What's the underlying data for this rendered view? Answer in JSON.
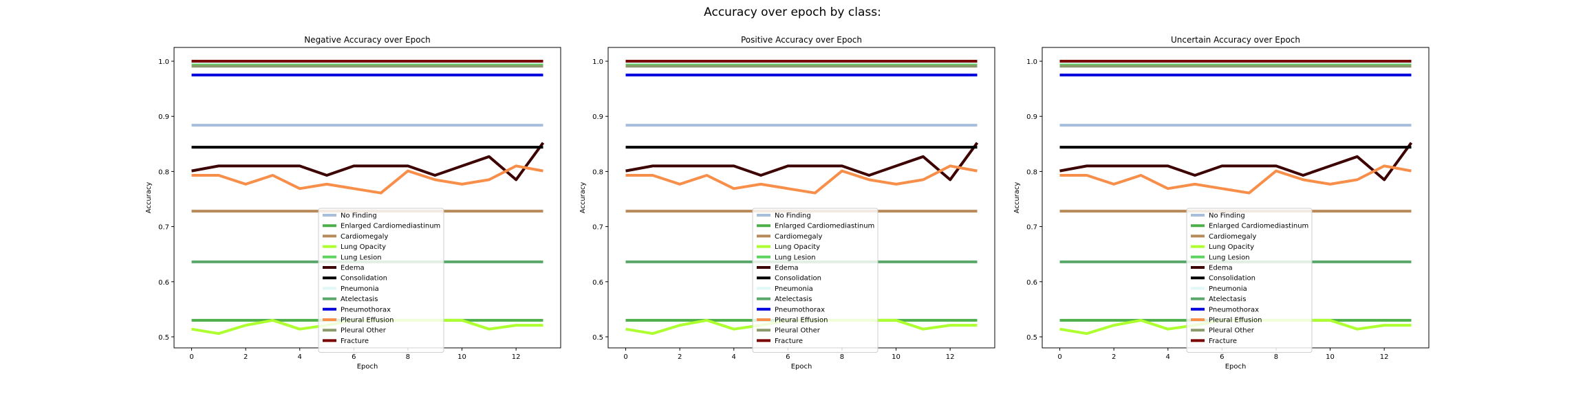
{
  "figure": {
    "title": "Accuracy over epoch by class:"
  },
  "chart_data": [
    {
      "type": "line",
      "title": "Negative Accuracy over Epoch",
      "xlabel": "Epoch",
      "ylabel": "Accuracy",
      "xlim": [
        -0.65,
        13.65
      ],
      "ylim": [
        0.48,
        1.025
      ],
      "xticks": [
        0,
        2,
        4,
        6,
        8,
        10,
        12
      ],
      "yticks": [
        0.5,
        0.6,
        0.7,
        0.8,
        0.9,
        1.0
      ],
      "grid": false,
      "legend": "lower-center",
      "x": [
        0,
        1,
        2,
        3,
        4,
        5,
        6,
        7,
        8,
        9,
        10,
        11,
        12,
        13
      ],
      "series": [
        {
          "name": "No Finding",
          "color": "#a6bddb",
          "values": [
            0.884,
            0.884,
            0.884,
            0.884,
            0.884,
            0.884,
            0.884,
            0.884,
            0.884,
            0.884,
            0.884,
            0.884,
            0.884,
            0.884
          ]
        },
        {
          "name": "Enlarged Cardiomediastinum",
          "color": "#4daf4a",
          "values": [
            0.53,
            0.53,
            0.53,
            0.53,
            0.53,
            0.53,
            0.53,
            0.53,
            0.53,
            0.53,
            0.53,
            0.53,
            0.53,
            0.53
          ]
        },
        {
          "name": "Cardiomegaly",
          "color": "#b88a5a",
          "values": [
            0.728,
            0.728,
            0.728,
            0.728,
            0.728,
            0.728,
            0.728,
            0.728,
            0.728,
            0.728,
            0.728,
            0.728,
            0.728,
            0.728
          ]
        },
        {
          "name": "Lung Opacity",
          "color": "#adff2f",
          "values": [
            0.514,
            0.506,
            0.521,
            0.53,
            0.514,
            0.521,
            0.53,
            0.53,
            0.53,
            0.53,
            0.53,
            0.514,
            0.521,
            0.521
          ]
        },
        {
          "name": "Lung Lesion",
          "color": "#5fd35f",
          "values": [
            0.994,
            0.994,
            0.994,
            0.994,
            0.994,
            0.994,
            0.994,
            0.994,
            0.994,
            0.994,
            0.994,
            0.994,
            0.994,
            0.994
          ]
        },
        {
          "name": "Edema",
          "color": "#3d0000",
          "values": [
            0.801,
            0.81,
            0.81,
            0.81,
            0.81,
            0.793,
            0.81,
            0.81,
            0.81,
            0.793,
            0.81,
            0.827,
            0.785,
            0.852
          ]
        },
        {
          "name": "Consolidation",
          "color": "#000000",
          "values": [
            0.844,
            0.844,
            0.844,
            0.844,
            0.844,
            0.844,
            0.844,
            0.844,
            0.844,
            0.844,
            0.844,
            0.844,
            0.844,
            0.844
          ]
        },
        {
          "name": "Pneumonia",
          "color": "#e0f8f8",
          "values": [
            0.998,
            0.998,
            0.998,
            0.998,
            0.998,
            0.998,
            0.998,
            0.998,
            0.998,
            0.998,
            0.998,
            0.998,
            0.998,
            0.998
          ]
        },
        {
          "name": "Atelectasis",
          "color": "#5aa869",
          "values": [
            0.636,
            0.636,
            0.636,
            0.636,
            0.636,
            0.636,
            0.636,
            0.636,
            0.636,
            0.636,
            0.636,
            0.636,
            0.636,
            0.636
          ]
        },
        {
          "name": "Pneumothorax",
          "color": "#0000dd",
          "values": [
            0.975,
            0.975,
            0.975,
            0.975,
            0.975,
            0.975,
            0.975,
            0.975,
            0.975,
            0.975,
            0.975,
            0.975,
            0.975,
            0.975
          ]
        },
        {
          "name": "Pleural Effusion",
          "color": "#f78f4a",
          "values": [
            0.793,
            0.793,
            0.777,
            0.793,
            0.769,
            0.777,
            0.769,
            0.761,
            0.801,
            0.785,
            0.777,
            0.785,
            0.81,
            0.801
          ]
        },
        {
          "name": "Pleural Other",
          "color": "#8b9a6b",
          "values": [
            0.991,
            0.991,
            0.991,
            0.991,
            0.991,
            0.991,
            0.991,
            0.991,
            0.991,
            0.991,
            0.991,
            0.991,
            0.991,
            0.991
          ]
        },
        {
          "name": "Fracture",
          "color": "#7a0000",
          "values": [
            1.0,
            1.0,
            1.0,
            1.0,
            1.0,
            1.0,
            1.0,
            1.0,
            1.0,
            1.0,
            1.0,
            1.0,
            1.0,
            1.0
          ]
        }
      ]
    },
    {
      "type": "line",
      "title": "Positive Accuracy over Epoch",
      "xlabel": "Epoch",
      "ylabel": "Accuracy",
      "xlim": [
        -0.65,
        13.65
      ],
      "ylim": [
        0.48,
        1.025
      ],
      "xticks": [
        0,
        2,
        4,
        6,
        8,
        10,
        12
      ],
      "yticks": [
        0.5,
        0.6,
        0.7,
        0.8,
        0.9,
        1.0
      ],
      "grid": false,
      "legend": "lower-center",
      "x": [
        0,
        1,
        2,
        3,
        4,
        5,
        6,
        7,
        8,
        9,
        10,
        11,
        12,
        13
      ],
      "series": [
        {
          "name": "No Finding",
          "color": "#a6bddb",
          "values": [
            0.884,
            0.884,
            0.884,
            0.884,
            0.884,
            0.884,
            0.884,
            0.884,
            0.884,
            0.884,
            0.884,
            0.884,
            0.884,
            0.884
          ]
        },
        {
          "name": "Enlarged Cardiomediastinum",
          "color": "#4daf4a",
          "values": [
            0.53,
            0.53,
            0.53,
            0.53,
            0.53,
            0.53,
            0.53,
            0.53,
            0.53,
            0.53,
            0.53,
            0.53,
            0.53,
            0.53
          ]
        },
        {
          "name": "Cardiomegaly",
          "color": "#b88a5a",
          "values": [
            0.728,
            0.728,
            0.728,
            0.728,
            0.728,
            0.728,
            0.728,
            0.728,
            0.728,
            0.728,
            0.728,
            0.728,
            0.728,
            0.728
          ]
        },
        {
          "name": "Lung Opacity",
          "color": "#adff2f",
          "values": [
            0.514,
            0.506,
            0.521,
            0.53,
            0.514,
            0.521,
            0.53,
            0.53,
            0.53,
            0.53,
            0.53,
            0.514,
            0.521,
            0.521
          ]
        },
        {
          "name": "Lung Lesion",
          "color": "#5fd35f",
          "values": [
            0.994,
            0.994,
            0.994,
            0.994,
            0.994,
            0.994,
            0.994,
            0.994,
            0.994,
            0.994,
            0.994,
            0.994,
            0.994,
            0.994
          ]
        },
        {
          "name": "Edema",
          "color": "#3d0000",
          "values": [
            0.801,
            0.81,
            0.81,
            0.81,
            0.81,
            0.793,
            0.81,
            0.81,
            0.81,
            0.793,
            0.81,
            0.827,
            0.785,
            0.852
          ]
        },
        {
          "name": "Consolidation",
          "color": "#000000",
          "values": [
            0.844,
            0.844,
            0.844,
            0.844,
            0.844,
            0.844,
            0.844,
            0.844,
            0.844,
            0.844,
            0.844,
            0.844,
            0.844,
            0.844
          ]
        },
        {
          "name": "Pneumonia",
          "color": "#e0f8f8",
          "values": [
            0.998,
            0.998,
            0.998,
            0.998,
            0.998,
            0.998,
            0.998,
            0.998,
            0.998,
            0.998,
            0.998,
            0.998,
            0.998,
            0.998
          ]
        },
        {
          "name": "Atelectasis",
          "color": "#5aa869",
          "values": [
            0.636,
            0.636,
            0.636,
            0.636,
            0.636,
            0.636,
            0.636,
            0.636,
            0.636,
            0.636,
            0.636,
            0.636,
            0.636,
            0.636
          ]
        },
        {
          "name": "Pneumothorax",
          "color": "#0000dd",
          "values": [
            0.975,
            0.975,
            0.975,
            0.975,
            0.975,
            0.975,
            0.975,
            0.975,
            0.975,
            0.975,
            0.975,
            0.975,
            0.975,
            0.975
          ]
        },
        {
          "name": "Pleural Effusion",
          "color": "#f78f4a",
          "values": [
            0.793,
            0.793,
            0.777,
            0.793,
            0.769,
            0.777,
            0.769,
            0.761,
            0.801,
            0.785,
            0.777,
            0.785,
            0.81,
            0.801
          ]
        },
        {
          "name": "Pleural Other",
          "color": "#8b9a6b",
          "values": [
            0.991,
            0.991,
            0.991,
            0.991,
            0.991,
            0.991,
            0.991,
            0.991,
            0.991,
            0.991,
            0.991,
            0.991,
            0.991,
            0.991
          ]
        },
        {
          "name": "Fracture",
          "color": "#7a0000",
          "values": [
            1.0,
            1.0,
            1.0,
            1.0,
            1.0,
            1.0,
            1.0,
            1.0,
            1.0,
            1.0,
            1.0,
            1.0,
            1.0,
            1.0
          ]
        }
      ]
    },
    {
      "type": "line",
      "title": "Uncertain Accuracy over Epoch",
      "xlabel": "Epoch",
      "ylabel": "Accuracy",
      "xlim": [
        -0.65,
        13.65
      ],
      "ylim": [
        0.48,
        1.025
      ],
      "xticks": [
        0,
        2,
        4,
        6,
        8,
        10,
        12
      ],
      "yticks": [
        0.5,
        0.6,
        0.7,
        0.8,
        0.9,
        1.0
      ],
      "grid": false,
      "legend": "lower-center",
      "x": [
        0,
        1,
        2,
        3,
        4,
        5,
        6,
        7,
        8,
        9,
        10,
        11,
        12,
        13
      ],
      "series": [
        {
          "name": "No Finding",
          "color": "#a6bddb",
          "values": [
            0.884,
            0.884,
            0.884,
            0.884,
            0.884,
            0.884,
            0.884,
            0.884,
            0.884,
            0.884,
            0.884,
            0.884,
            0.884,
            0.884
          ]
        },
        {
          "name": "Enlarged Cardiomediastinum",
          "color": "#4daf4a",
          "values": [
            0.53,
            0.53,
            0.53,
            0.53,
            0.53,
            0.53,
            0.53,
            0.53,
            0.53,
            0.53,
            0.53,
            0.53,
            0.53,
            0.53
          ]
        },
        {
          "name": "Cardiomegaly",
          "color": "#b88a5a",
          "values": [
            0.728,
            0.728,
            0.728,
            0.728,
            0.728,
            0.728,
            0.728,
            0.728,
            0.728,
            0.728,
            0.728,
            0.728,
            0.728,
            0.728
          ]
        },
        {
          "name": "Lung Opacity",
          "color": "#adff2f",
          "values": [
            0.514,
            0.506,
            0.521,
            0.53,
            0.514,
            0.521,
            0.53,
            0.53,
            0.53,
            0.53,
            0.53,
            0.514,
            0.521,
            0.521
          ]
        },
        {
          "name": "Lung Lesion",
          "color": "#5fd35f",
          "values": [
            0.994,
            0.994,
            0.994,
            0.994,
            0.994,
            0.994,
            0.994,
            0.994,
            0.994,
            0.994,
            0.994,
            0.994,
            0.994,
            0.994
          ]
        },
        {
          "name": "Edema",
          "color": "#3d0000",
          "values": [
            0.801,
            0.81,
            0.81,
            0.81,
            0.81,
            0.793,
            0.81,
            0.81,
            0.81,
            0.793,
            0.81,
            0.827,
            0.785,
            0.852
          ]
        },
        {
          "name": "Consolidation",
          "color": "#000000",
          "values": [
            0.844,
            0.844,
            0.844,
            0.844,
            0.844,
            0.844,
            0.844,
            0.844,
            0.844,
            0.844,
            0.844,
            0.844,
            0.844,
            0.844
          ]
        },
        {
          "name": "Pneumonia",
          "color": "#e0f8f8",
          "values": [
            0.998,
            0.998,
            0.998,
            0.998,
            0.998,
            0.998,
            0.998,
            0.998,
            0.998,
            0.998,
            0.998,
            0.998,
            0.998,
            0.998
          ]
        },
        {
          "name": "Atelectasis",
          "color": "#5aa869",
          "values": [
            0.636,
            0.636,
            0.636,
            0.636,
            0.636,
            0.636,
            0.636,
            0.636,
            0.636,
            0.636,
            0.636,
            0.636,
            0.636,
            0.636
          ]
        },
        {
          "name": "Pneumothorax",
          "color": "#0000dd",
          "values": [
            0.975,
            0.975,
            0.975,
            0.975,
            0.975,
            0.975,
            0.975,
            0.975,
            0.975,
            0.975,
            0.975,
            0.975,
            0.975,
            0.975
          ]
        },
        {
          "name": "Pleural Effusion",
          "color": "#f78f4a",
          "values": [
            0.793,
            0.793,
            0.777,
            0.793,
            0.769,
            0.777,
            0.769,
            0.761,
            0.801,
            0.785,
            0.777,
            0.785,
            0.81,
            0.801
          ]
        },
        {
          "name": "Pleural Other",
          "color": "#8b9a6b",
          "values": [
            0.991,
            0.991,
            0.991,
            0.991,
            0.991,
            0.991,
            0.991,
            0.991,
            0.991,
            0.991,
            0.991,
            0.991,
            0.991,
            0.991
          ]
        },
        {
          "name": "Fracture",
          "color": "#7a0000",
          "values": [
            1.0,
            1.0,
            1.0,
            1.0,
            1.0,
            1.0,
            1.0,
            1.0,
            1.0,
            1.0,
            1.0,
            1.0,
            1.0,
            1.0
          ]
        }
      ]
    }
  ]
}
